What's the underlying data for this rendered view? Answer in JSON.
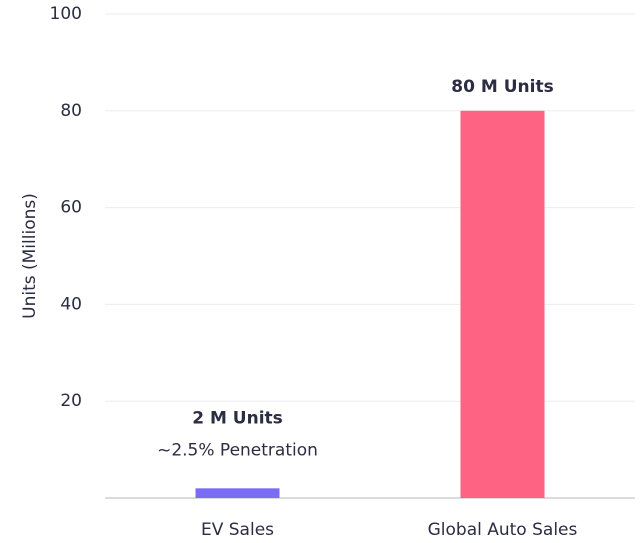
{
  "chart_data": {
    "type": "bar",
    "y_label": "Units (Millions)",
    "categories": [
      "EV Sales",
      "Global Auto Sales"
    ],
    "values": [
      2,
      80
    ],
    "value_labels": [
      "2 M Units",
      "80 M Units"
    ],
    "annotation": "~2.5% Penetration",
    "colors": [
      "#7b6cf6",
      "#ff6384"
    ],
    "ylim": [
      0,
      100
    ],
    "yticks": [
      20,
      40,
      60,
      80,
      100
    ],
    "grid": true
  }
}
